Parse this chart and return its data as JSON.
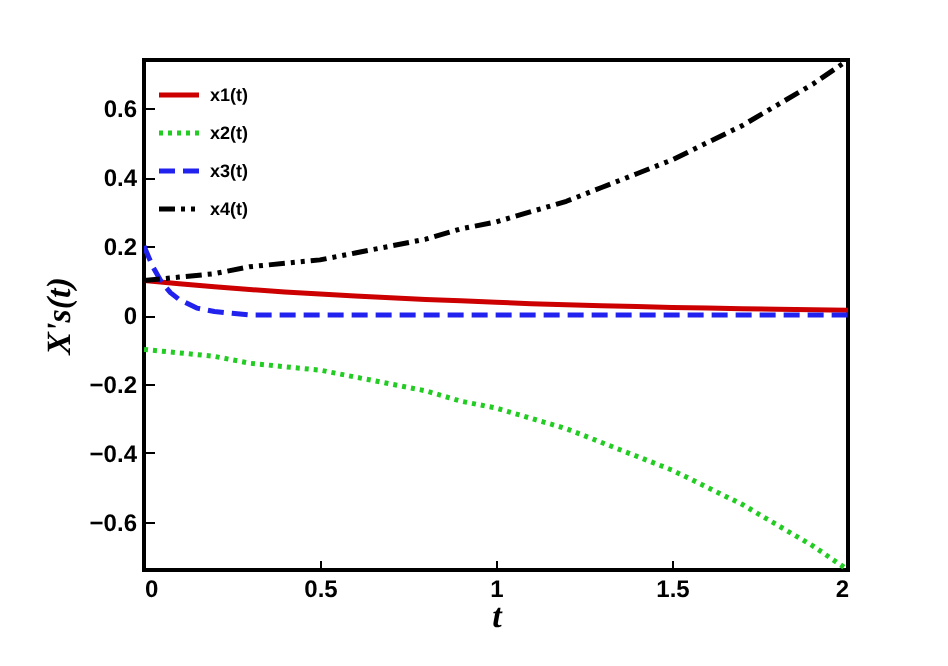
{
  "chart_data": {
    "type": "line",
    "xlabel": "t",
    "ylabel": "X's(t)",
    "xlim": [
      0,
      2
    ],
    "ylim": [
      -0.74,
      0.74
    ],
    "xticks": [
      0,
      0.5,
      1,
      1.5,
      2
    ],
    "yticks": [
      -0.6,
      -0.4,
      -0.2,
      0,
      0.2,
      0.4,
      0.6
    ],
    "legend": "top left",
    "grid": false,
    "x": [
      0,
      0.1,
      0.2,
      0.3,
      0.4,
      0.5,
      0.6,
      0.7,
      0.8,
      0.9,
      1,
      1.1,
      1.2,
      1.3,
      1.4,
      1.5,
      1.6,
      1.7,
      1.8,
      1.9,
      2
    ],
    "series": [
      {
        "name": "x1(t)",
        "color": "#cc0000",
        "line_style": "solid",
        "values": [
          0.1,
          0.091,
          0.082,
          0.074,
          0.067,
          0.061,
          0.055,
          0.05,
          0.045,
          0.041,
          0.037,
          0.033,
          0.03,
          0.027,
          0.025,
          0.022,
          0.02,
          0.018,
          0.017,
          0.015,
          0.014
        ]
      },
      {
        "name": "x2(t)",
        "color": "#22cc22",
        "line_style": "dotted",
        "values": [
          -0.1,
          -0.11,
          -0.12,
          -0.14,
          -0.15,
          -0.16,
          -0.18,
          -0.2,
          -0.22,
          -0.25,
          -0.27,
          -0.3,
          -0.33,
          -0.37,
          -0.41,
          -0.45,
          -0.5,
          -0.55,
          -0.61,
          -0.67,
          -0.74
        ]
      },
      {
        "name": "x3(t)",
        "color": "#2222ee",
        "line_style": "dashed",
        "x": [
          0,
          0.025,
          0.05,
          0.075,
          0.1,
          0.15,
          0.2,
          0.25,
          0.3,
          0.5,
          1,
          1.5,
          2
        ],
        "values": [
          0.2,
          0.14,
          0.095,
          0.065,
          0.045,
          0.02,
          0.01,
          0.005,
          0,
          0,
          0,
          0,
          0
        ]
      },
      {
        "name": "x4(t)",
        "color": "#000000",
        "line_style": "dashdot",
        "values": [
          0.1,
          0.11,
          0.12,
          0.14,
          0.15,
          0.16,
          0.18,
          0.2,
          0.22,
          0.25,
          0.27,
          0.3,
          0.33,
          0.37,
          0.41,
          0.45,
          0.5,
          0.55,
          0.61,
          0.67,
          0.74
        ]
      }
    ]
  }
}
